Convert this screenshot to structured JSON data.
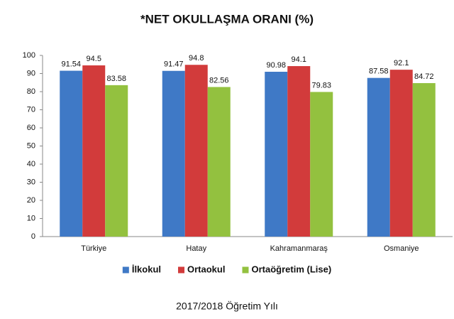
{
  "chart_data": {
    "type": "bar",
    "title": "*NET OKULLAŞMA ORANI (%)",
    "categories": [
      "Türkiye",
      "Hatay",
      "Kahramanmaraş",
      "Osmaniye"
    ],
    "series": [
      {
        "name": "İlkokul",
        "color": "#3f79c6",
        "values": [
          91.54,
          91.47,
          90.98,
          87.58
        ]
      },
      {
        "name": "Ortaokul",
        "color": "#d23b3b",
        "values": [
          94.5,
          94.8,
          94.1,
          92.1
        ]
      },
      {
        "name": "Ortaöğretim (Lise)",
        "color": "#93c13f",
        "values": [
          83.58,
          82.56,
          79.83,
          84.72
        ]
      }
    ],
    "ylim": [
      0,
      100
    ],
    "yticks": [
      0,
      10,
      20,
      30,
      40,
      50,
      60,
      70,
      80,
      90,
      100
    ],
    "xlabel": "2017/2018 Öğretim Yılı",
    "grid": false,
    "legend": "bottom"
  }
}
